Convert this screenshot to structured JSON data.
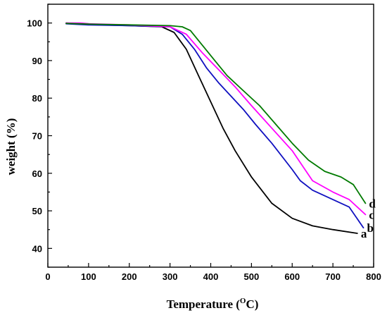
{
  "chart_data": {
    "type": "line",
    "xlabel": "Temperature (",
    "xlabel_sup": "O",
    "xlabel_tail": "C)",
    "ylabel": "weight (%)",
    "xlim": [
      0,
      800
    ],
    "ylim": [
      35,
      105
    ],
    "xticks": [
      0,
      100,
      200,
      300,
      400,
      500,
      600,
      700,
      800
    ],
    "yticks": [
      40,
      50,
      60,
      70,
      80,
      90,
      100
    ],
    "grid": false,
    "series": [
      {
        "name": "a",
        "color": "#000000",
        "points": [
          [
            45,
            100
          ],
          [
            100,
            99.6
          ],
          [
            200,
            99.3
          ],
          [
            280,
            99
          ],
          [
            310,
            97.5
          ],
          [
            340,
            93
          ],
          [
            370,
            86
          ],
          [
            400,
            79
          ],
          [
            430,
            72
          ],
          [
            460,
            66
          ],
          [
            500,
            59
          ],
          [
            550,
            52
          ],
          [
            600,
            48
          ],
          [
            650,
            46
          ],
          [
            700,
            45
          ],
          [
            760,
            44
          ]
        ]
      },
      {
        "name": "b",
        "color": "#1010c0",
        "points": [
          [
            45,
            99.8
          ],
          [
            100,
            99.5
          ],
          [
            200,
            99.3
          ],
          [
            300,
            99
          ],
          [
            330,
            97
          ],
          [
            360,
            93
          ],
          [
            390,
            88
          ],
          [
            420,
            84
          ],
          [
            450,
            80.5
          ],
          [
            480,
            77
          ],
          [
            510,
            73
          ],
          [
            550,
            68
          ],
          [
            600,
            61
          ],
          [
            620,
            58
          ],
          [
            650,
            55.5
          ],
          [
            700,
            53
          ],
          [
            740,
            51
          ],
          [
            775,
            45.5
          ]
        ]
      },
      {
        "name": "c",
        "color": "#ff00ff",
        "points": [
          [
            45,
            100
          ],
          [
            80,
            100
          ],
          [
            100,
            99.8
          ],
          [
            200,
            99.5
          ],
          [
            300,
            99
          ],
          [
            340,
            97
          ],
          [
            380,
            92
          ],
          [
            420,
            87.5
          ],
          [
            460,
            83
          ],
          [
            500,
            78
          ],
          [
            550,
            72
          ],
          [
            600,
            66
          ],
          [
            650,
            58
          ],
          [
            700,
            55
          ],
          [
            740,
            53
          ],
          [
            780,
            49
          ]
        ]
      },
      {
        "name": "d",
        "color": "#007a00",
        "points": [
          [
            45,
            99.9
          ],
          [
            100,
            99.7
          ],
          [
            200,
            99.5
          ],
          [
            300,
            99.3
          ],
          [
            330,
            99
          ],
          [
            350,
            98
          ],
          [
            380,
            94
          ],
          [
            410,
            90
          ],
          [
            440,
            86
          ],
          [
            480,
            82
          ],
          [
            520,
            78
          ],
          [
            560,
            73
          ],
          [
            600,
            68
          ],
          [
            640,
            63.5
          ],
          [
            680,
            60.5
          ],
          [
            720,
            59
          ],
          [
            750,
            57
          ],
          [
            780,
            52
          ]
        ]
      }
    ]
  }
}
